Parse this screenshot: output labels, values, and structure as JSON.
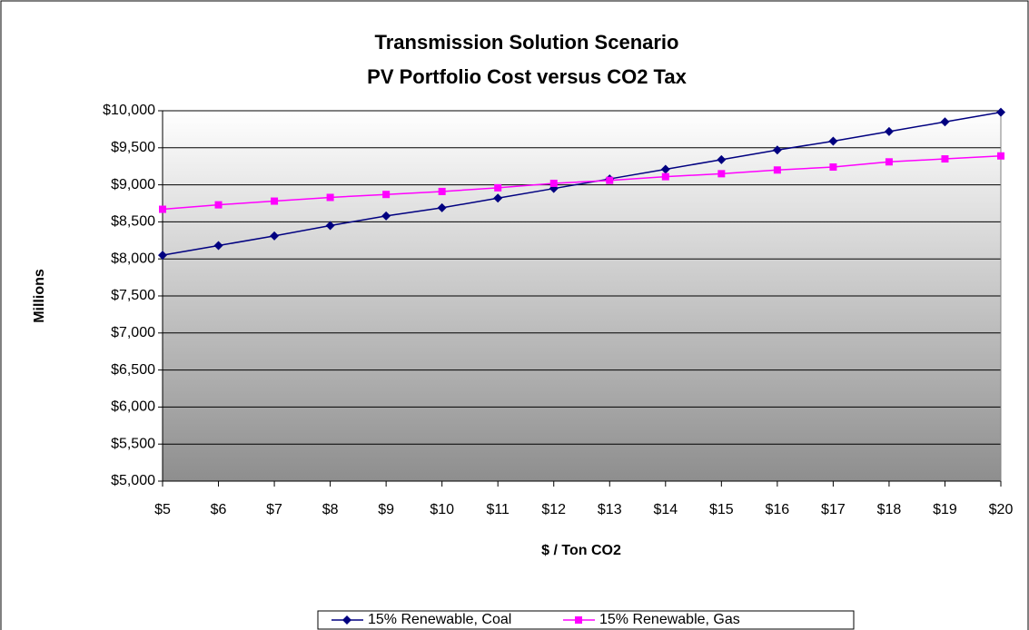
{
  "chart_data": {
    "type": "line",
    "title": [
      "Transmission Solution Scenario",
      "PV Portfolio Cost versus CO2 Tax"
    ],
    "x_label": "$ / Ton CO2",
    "y_label": "Millions",
    "categories": [
      "$5",
      "$6",
      "$7",
      "$8",
      "$9",
      "$10",
      "$11",
      "$12",
      "$13",
      "$14",
      "$15",
      "$16",
      "$17",
      "$18",
      "$19",
      "$20"
    ],
    "series": [
      {
        "name": "15% Renewable, Coal",
        "color": "#000080",
        "marker": "diamond",
        "values": [
          8050,
          8180,
          8310,
          8450,
          8580,
          8690,
          8820,
          8950,
          9080,
          9210,
          9340,
          9470,
          9590,
          9720,
          9850,
          9980
        ]
      },
      {
        "name": "15% Renewable, Gas",
        "color": "#ff00ff",
        "marker": "square",
        "values": [
          8670,
          8730,
          8780,
          8830,
          8870,
          8910,
          8960,
          9020,
          9060,
          9110,
          9150,
          9200,
          9240,
          9310,
          9350,
          9390
        ]
      }
    ],
    "ylim": [
      5000,
      10000
    ],
    "yticks": [
      {
        "value": 5000,
        "label": "$5,000"
      },
      {
        "value": 5500,
        "label": "$5,500"
      },
      {
        "value": 6000,
        "label": "$6,000"
      },
      {
        "value": 6500,
        "label": "$6,500"
      },
      {
        "value": 7000,
        "label": "$7,000"
      },
      {
        "value": 7500,
        "label": "$7,500"
      },
      {
        "value": 8000,
        "label": "$8,000"
      },
      {
        "value": 8500,
        "label": "$8,500"
      },
      {
        "value": 9000,
        "label": "$9,000"
      },
      {
        "value": 9500,
        "label": "$9,500"
      },
      {
        "value": 10000,
        "label": "$10,000"
      }
    ],
    "grid": true,
    "legend": "bottom"
  }
}
